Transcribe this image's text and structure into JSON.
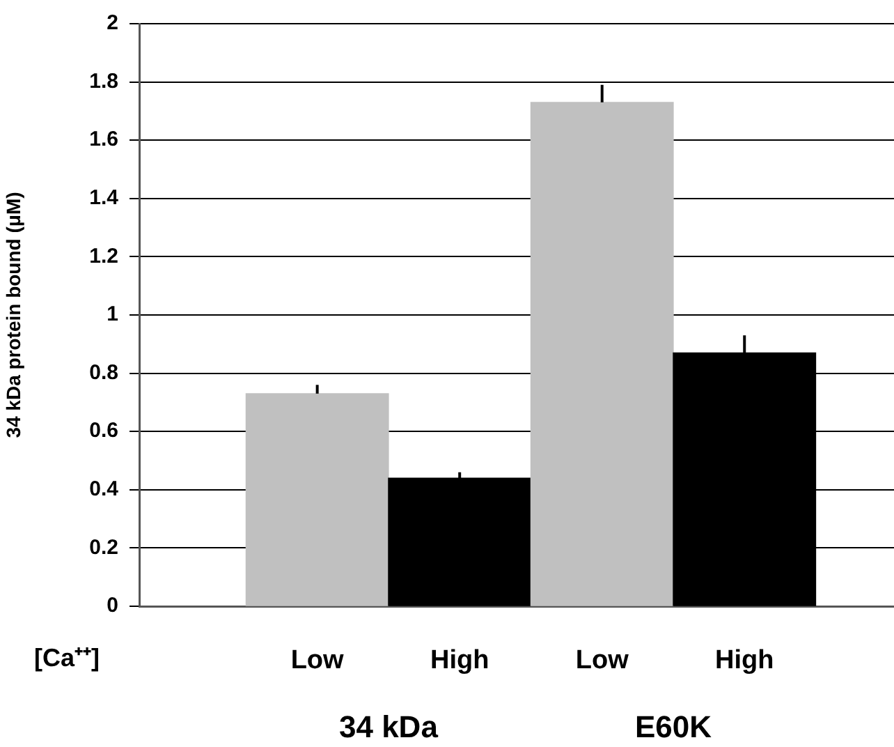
{
  "chart_data": {
    "type": "bar",
    "ylabel": "34 kDa protein bound (μM)",
    "categories": [
      "Low",
      "High",
      "Low",
      "High"
    ],
    "values": [
      0.73,
      0.44,
      1.73,
      0.87
    ],
    "colors": [
      "#c0c0c0",
      "#000000",
      "#c0c0c0",
      "#000000"
    ],
    "errors": [
      [
        0.73,
        0.76
      ],
      [
        0.44,
        0.46
      ],
      [
        1.73,
        1.79
      ],
      [
        0.87,
        0.93
      ]
    ],
    "ylim": [
      0,
      2
    ],
    "yticks": [
      0,
      0.2,
      0.4,
      0.6,
      0.8,
      1,
      1.2,
      1.4,
      1.6,
      1.8,
      2
    ],
    "grid": "y",
    "legend": false,
    "annotations": [
      "[Ca⁺⁺]",
      "34 kDa",
      "E60K"
    ]
  }
}
